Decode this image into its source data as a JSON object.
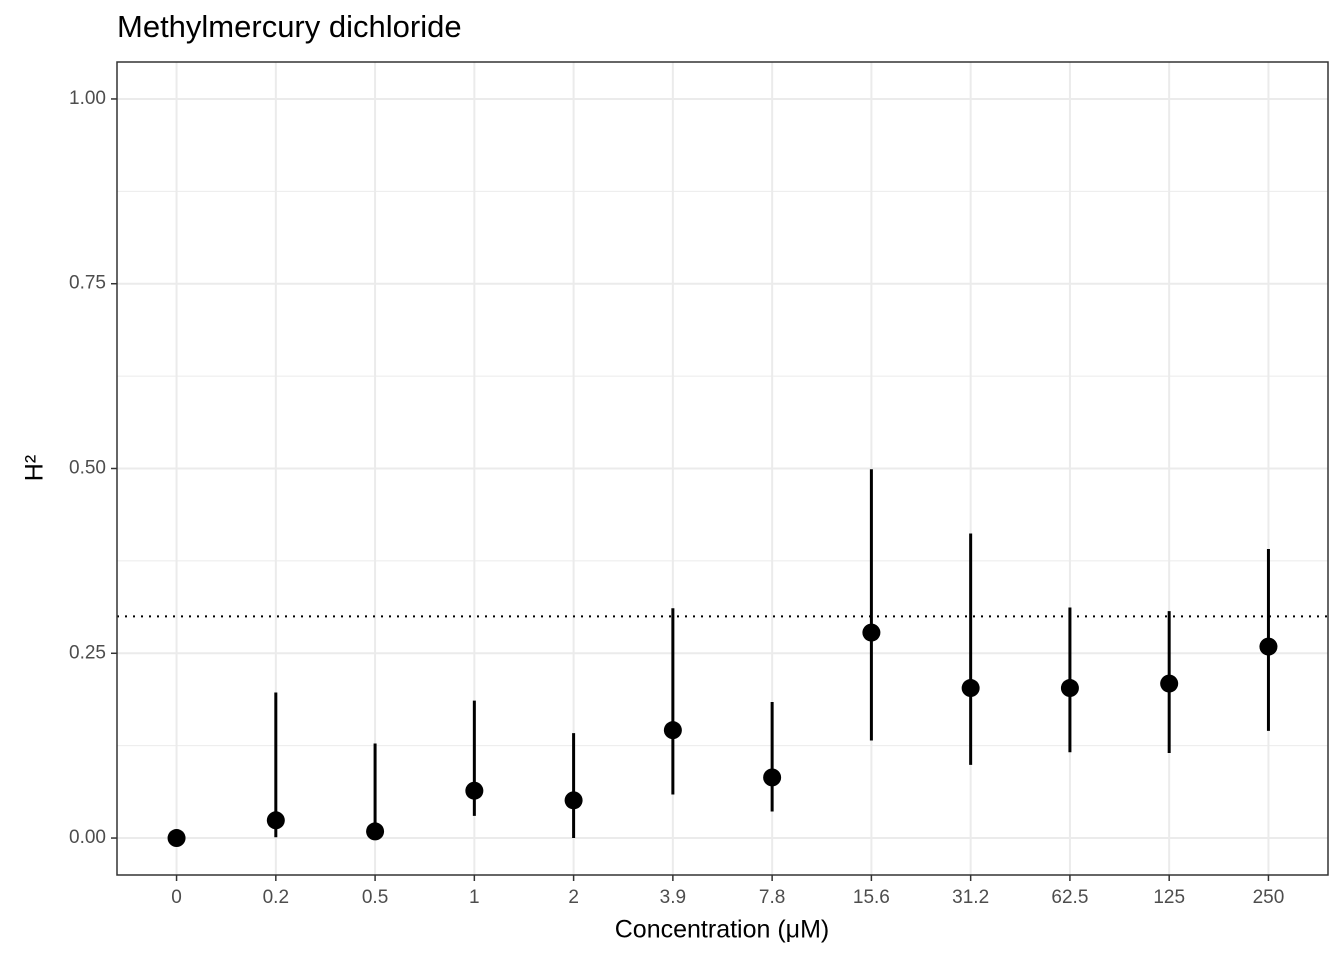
{
  "chart_data": {
    "type": "pointrange",
    "title": "Methylmercury dichloride",
    "x_label": "Concentration (μM)",
    "y_label": "H²",
    "categories": [
      "0",
      "0.2",
      "0.5",
      "1",
      "2",
      "3.9",
      "7.8",
      "15.6",
      "31.2",
      "62.5",
      "125",
      "250"
    ],
    "values": [
      0,
      0.024,
      0.009,
      0.064,
      0.051,
      0.146,
      0.082,
      0.278,
      0.203,
      0.203,
      0.209,
      0.259
    ],
    "lower": [
      0,
      0.001,
      0,
      0.03,
      0,
      0.059,
      0.036,
      0.132,
      0.099,
      0.116,
      0.115,
      0.145
    ],
    "upper": [
      0,
      0.197,
      0.128,
      0.186,
      0.142,
      0.311,
      0.184,
      0.499,
      0.412,
      0.312,
      0.307,
      0.391
    ],
    "color": "#000000",
    "reference_line": 0.3,
    "ylim": [
      -0.05,
      1.05
    ],
    "yticks": [
      {
        "value": 0,
        "label": "0.00"
      },
      {
        "value": 0.25,
        "label": "0.25"
      },
      {
        "value": 0.5,
        "label": "0.50"
      },
      {
        "value": 0.75,
        "label": "0.75"
      },
      {
        "value": 1,
        "label": "1.00"
      }
    ],
    "grid": true
  }
}
